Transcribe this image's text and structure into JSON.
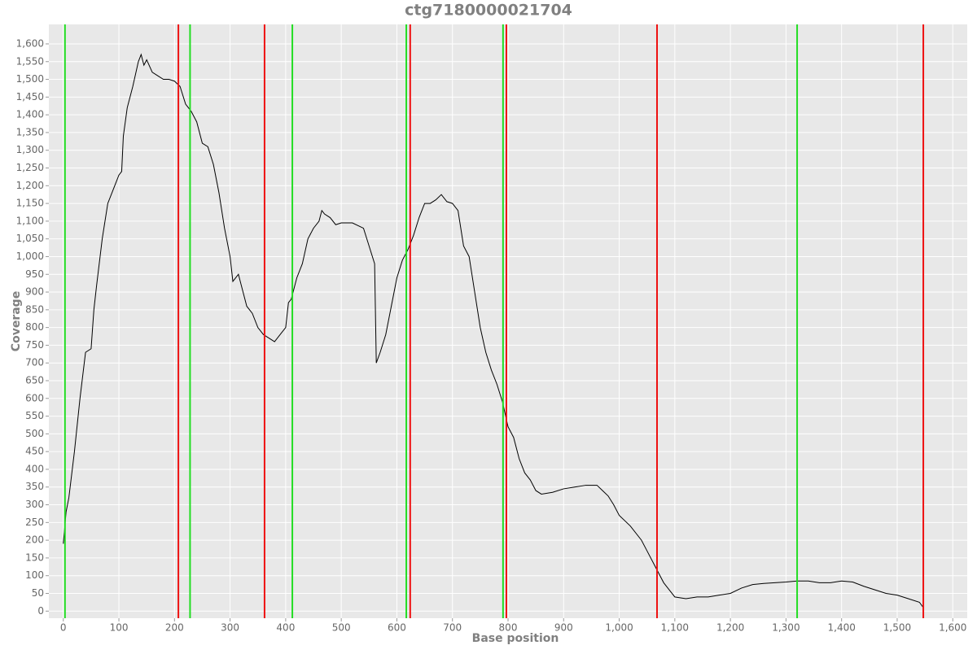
{
  "chart_data": {
    "type": "line",
    "title": "ctg7180000021704",
    "x_label": "Base position",
    "y_label": "Coverage",
    "xlim": [
      -26,
      1626
    ],
    "ylim": [
      -20,
      1655
    ],
    "grid": true,
    "xticks": [
      0,
      100,
      200,
      300,
      400,
      500,
      600,
      700,
      800,
      900,
      {
        "value": 1000,
        "label": "1,000"
      },
      {
        "value": 1100,
        "label": "1,100"
      },
      {
        "value": 1200,
        "label": "1,200"
      },
      {
        "value": 1300,
        "label": "1,300"
      },
      {
        "value": 1400,
        "label": "1,400"
      },
      {
        "value": 1500,
        "label": "1,500"
      },
      {
        "value": 1600,
        "label": "1,600"
      }
    ],
    "yticks": [
      0,
      50,
      100,
      150,
      200,
      250,
      300,
      350,
      400,
      450,
      500,
      550,
      600,
      650,
      700,
      750,
      800,
      850,
      900,
      950,
      {
        "value": 1000,
        "label": "1,000"
      },
      {
        "value": 1050,
        "label": "1,050"
      },
      {
        "value": 1100,
        "label": "1,100"
      },
      {
        "value": 1150,
        "label": "1,150"
      },
      {
        "value": 1200,
        "label": "1,200"
      },
      {
        "value": 1250,
        "label": "1,250"
      },
      {
        "value": 1300,
        "label": "1,300"
      },
      {
        "value": 1350,
        "label": "1,350"
      },
      {
        "value": 1400,
        "label": "1,400"
      },
      {
        "value": 1450,
        "label": "1,450"
      },
      {
        "value": 1500,
        "label": "1,500"
      },
      {
        "value": 1550,
        "label": "1,550"
      },
      {
        "value": 1600,
        "label": "1,600"
      }
    ],
    "series": [
      {
        "color": "#000000",
        "x": [
          0,
          5,
          10,
          20,
          30,
          40,
          50,
          55,
          60,
          70,
          80,
          90,
          100,
          105,
          108,
          115,
          125,
          135,
          140,
          145,
          150,
          160,
          170,
          180,
          190,
          200,
          210,
          220,
          230,
          240,
          250,
          260,
          270,
          280,
          290,
          300,
          305,
          315,
          320,
          330,
          340,
          350,
          360,
          370,
          380,
          390,
          400,
          405,
          410,
          420,
          430,
          440,
          450,
          460,
          465,
          470,
          480,
          490,
          500,
          520,
          540,
          550,
          560,
          563,
          570,
          580,
          590,
          600,
          610,
          620,
          630,
          640,
          650,
          660,
          670,
          680,
          690,
          700,
          710,
          720,
          730,
          740,
          750,
          760,
          770,
          780,
          790,
          800,
          810,
          820,
          830,
          840,
          850,
          860,
          880,
          900,
          920,
          940,
          960,
          970,
          980,
          990,
          1000,
          1020,
          1040,
          1050,
          1060,
          1070,
          1080,
          1090,
          1100,
          1120,
          1140,
          1160,
          1180,
          1200,
          1220,
          1240,
          1260,
          1280,
          1300,
          1320,
          1340,
          1360,
          1380,
          1400,
          1420,
          1440,
          1460,
          1480,
          1500,
          1520,
          1540,
          1547
        ],
        "values": [
          190,
          280,
          320,
          450,
          600,
          730,
          740,
          850,
          920,
          1050,
          1150,
          1190,
          1230,
          1240,
          1340,
          1420,
          1480,
          1550,
          1570,
          1540,
          1555,
          1520,
          1510,
          1500,
          1500,
          1495,
          1480,
          1430,
          1410,
          1380,
          1320,
          1310,
          1260,
          1180,
          1080,
          1000,
          930,
          950,
          920,
          860,
          840,
          800,
          780,
          770,
          760,
          780,
          800,
          870,
          880,
          940,
          980,
          1050,
          1080,
          1100,
          1130,
          1120,
          1110,
          1090,
          1095,
          1095,
          1080,
          1030,
          980,
          700,
          730,
          780,
          860,
          940,
          990,
          1020,
          1060,
          1110,
          1150,
          1150,
          1160,
          1175,
          1155,
          1150,
          1130,
          1030,
          1000,
          900,
          800,
          730,
          680,
          640,
          590,
          520,
          490,
          430,
          390,
          370,
          340,
          330,
          335,
          345,
          350,
          355,
          355,
          340,
          325,
          300,
          270,
          240,
          200,
          170,
          140,
          110,
          80,
          60,
          40,
          35,
          40,
          40,
          45,
          50,
          65,
          75,
          78,
          80,
          82,
          85,
          85,
          80,
          80,
          85,
          82,
          70,
          60,
          50,
          45,
          35,
          25,
          10
        ]
      }
    ],
    "vertical_lines": [
      {
        "color": "#22dd22",
        "x": [
          3,
          228,
          412,
          617,
          791,
          1320
        ]
      },
      {
        "color": "#ee1111",
        "x": [
          207,
          362,
          624,
          797,
          1068,
          1547
        ]
      }
    ]
  }
}
